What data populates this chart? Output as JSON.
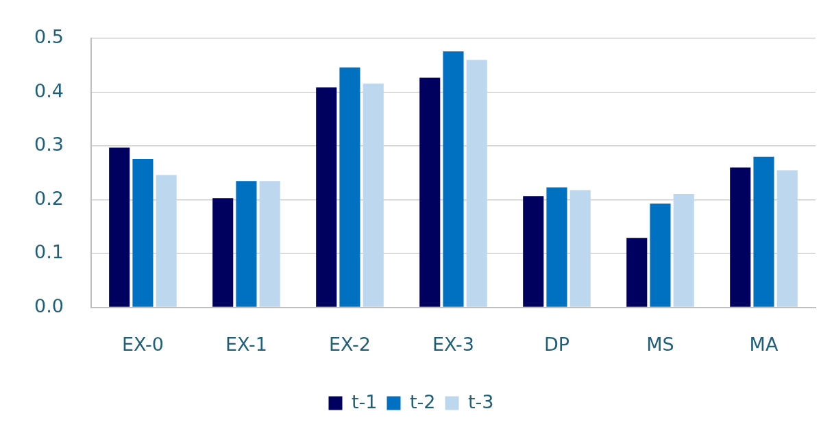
{
  "chart_data": {
    "type": "bar",
    "categories": [
      "EX-0",
      "EX-1",
      "EX-2",
      "EX-3",
      "DP",
      "MS",
      "MA"
    ],
    "series": [
      {
        "name": "t-1",
        "color": "#00005e",
        "values": [
          0.297,
          0.203,
          0.409,
          0.427,
          0.207,
          0.129,
          0.26
        ]
      },
      {
        "name": "t-2",
        "color": "#0070c0",
        "values": [
          0.276,
          0.235,
          0.446,
          0.476,
          0.223,
          0.193,
          0.28
        ]
      },
      {
        "name": "t-3",
        "color": "#bdd7ee",
        "values": [
          0.246,
          0.235,
          0.416,
          0.46,
          0.218,
          0.211,
          0.255
        ]
      }
    ],
    "ylim": [
      0,
      0.5
    ],
    "yticks": [
      {
        "value": 0,
        "label": "0.0"
      },
      {
        "value": 0.1,
        "label": "0.1"
      },
      {
        "value": 0.2,
        "label": "0.2"
      },
      {
        "value": 0.3,
        "label": "0.3"
      },
      {
        "value": 0.4,
        "label": "0.4"
      },
      {
        "value": 0.5,
        "label": "0.5"
      }
    ],
    "grid": "y",
    "legend": "bottom"
  }
}
